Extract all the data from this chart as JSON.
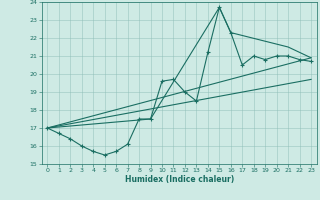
{
  "xlabel": "Humidex (Indice chaleur)",
  "xlim": [
    -0.5,
    23.5
  ],
  "ylim": [
    15,
    24
  ],
  "xticks": [
    0,
    1,
    2,
    3,
    4,
    5,
    6,
    7,
    8,
    9,
    10,
    11,
    12,
    13,
    14,
    15,
    16,
    17,
    18,
    19,
    20,
    21,
    22,
    23
  ],
  "yticks": [
    15,
    16,
    17,
    18,
    19,
    20,
    21,
    22,
    23,
    24
  ],
  "line_color": "#1a6e62",
  "bg_color": "#ceeae4",
  "data_main": [
    [
      0,
      17.0
    ],
    [
      1,
      16.7
    ],
    [
      2,
      16.4
    ],
    [
      3,
      16.0
    ],
    [
      4,
      15.7
    ],
    [
      5,
      15.5
    ],
    [
      6,
      15.7
    ],
    [
      7,
      16.1
    ],
    [
      8,
      17.5
    ],
    [
      9,
      17.5
    ],
    [
      10,
      19.6
    ],
    [
      11,
      19.7
    ],
    [
      12,
      19.0
    ],
    [
      13,
      18.5
    ],
    [
      14,
      21.2
    ],
    [
      15,
      23.7
    ],
    [
      16,
      22.3
    ],
    [
      17,
      20.5
    ],
    [
      18,
      21.0
    ],
    [
      19,
      20.8
    ],
    [
      20,
      21.0
    ],
    [
      21,
      21.0
    ],
    [
      22,
      20.8
    ],
    [
      23,
      20.7
    ]
  ],
  "data_line_upper": [
    [
      0,
      17.0
    ],
    [
      23,
      20.9
    ]
  ],
  "data_line_lower": [
    [
      0,
      17.0
    ],
    [
      23,
      19.7
    ]
  ],
  "data_envelope": [
    [
      0,
      17.0
    ],
    [
      9,
      17.5
    ],
    [
      15,
      23.7
    ],
    [
      16,
      22.3
    ],
    [
      21,
      21.5
    ],
    [
      23,
      20.9
    ]
  ]
}
